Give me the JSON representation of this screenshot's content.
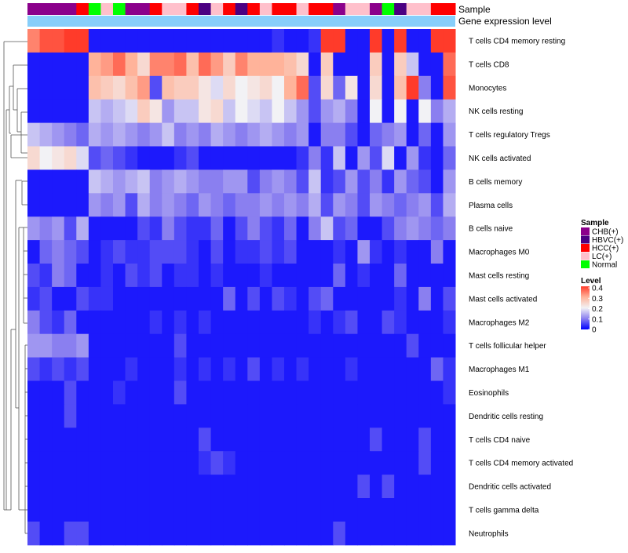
{
  "chart_data": {
    "type": "heatmap",
    "annotation_tracks": [
      "Sample",
      "Gene expression level"
    ],
    "rows": [
      "T cells CD4 memory resting",
      "T cells CD8",
      "Monocytes",
      "NK cells resting",
      "T cells regulatory  Tregs",
      "NK cells activated",
      "B cells memory",
      "Plasma cells",
      "B cells naive",
      "Macrophages M0",
      "Mast cells resting",
      "Mast cells activated",
      "Macrophages M2",
      "T cells follicular helper",
      "Macrophages M1",
      "Eosinophils",
      "Dendritic cells resting",
      "T cells CD4 naive",
      "T cells CD4 memory activated",
      "Dendritic cells activated",
      "T cells gamma delta",
      "Neutrophils"
    ],
    "sample_groups": [
      "CHB",
      "CHB",
      "CHB",
      "CHB",
      "HCC",
      "Normal",
      "LC",
      "Normal",
      "CHB",
      "CHB",
      "HCC",
      "LC",
      "LC",
      "HCC",
      "HBVC",
      "LC",
      "HCC",
      "HBVC",
      "HCC",
      "LC",
      "HCC",
      "HCC",
      "LC",
      "HCC",
      "HCC",
      "CHB",
      "LC",
      "LC",
      "CHB",
      "Normal",
      "HBVC",
      "LC",
      "LC",
      "HCC",
      "HCC"
    ],
    "values": [
      [
        0.34,
        0.38,
        0.38,
        0.42,
        0.42,
        0.02,
        0.02,
        0.02,
        0.02,
        0.02,
        0.02,
        0.02,
        0.02,
        0.02,
        0.02,
        0.02,
        0.02,
        0.02,
        0.02,
        0.02,
        0.04,
        0.02,
        0.02,
        0.04,
        0.42,
        0.42,
        0.02,
        0.02,
        0.44,
        0.02,
        0.4,
        0.02,
        0.02,
        0.42,
        0.42
      ],
      [
        0.02,
        0.02,
        0.02,
        0.02,
        0.02,
        0.3,
        0.32,
        0.36,
        0.3,
        0.24,
        0.34,
        0.34,
        0.36,
        0.28,
        0.36,
        0.32,
        0.26,
        0.34,
        0.3,
        0.3,
        0.3,
        0.28,
        0.24,
        0.02,
        0.26,
        0.02,
        0.02,
        0.02,
        0.26,
        0.02,
        0.26,
        0.16,
        0.02,
        0.02,
        0.36
      ],
      [
        0.02,
        0.02,
        0.02,
        0.02,
        0.02,
        0.28,
        0.26,
        0.24,
        0.28,
        0.32,
        0.06,
        0.28,
        0.26,
        0.26,
        0.22,
        0.18,
        0.24,
        0.2,
        0.22,
        0.24,
        0.2,
        0.3,
        0.36,
        0.06,
        0.24,
        0.08,
        0.22,
        0.02,
        0.24,
        0.02,
        0.28,
        0.44,
        0.1,
        0.02,
        0.38
      ],
      [
        0.02,
        0.02,
        0.02,
        0.02,
        0.02,
        0.16,
        0.14,
        0.16,
        0.18,
        0.26,
        0.22,
        0.12,
        0.16,
        0.16,
        0.22,
        0.24,
        0.16,
        0.2,
        0.18,
        0.16,
        0.2,
        0.16,
        0.12,
        0.06,
        0.12,
        0.14,
        0.1,
        0.02,
        0.2,
        0.02,
        0.2,
        0.02,
        0.2,
        0.1,
        0.14
      ],
      [
        0.16,
        0.14,
        0.12,
        0.1,
        0.08,
        0.14,
        0.12,
        0.14,
        0.12,
        0.1,
        0.12,
        0.16,
        0.1,
        0.12,
        0.1,
        0.14,
        0.12,
        0.1,
        0.12,
        0.14,
        0.12,
        0.1,
        0.12,
        0.02,
        0.1,
        0.1,
        0.06,
        0.02,
        0.08,
        0.1,
        0.12,
        0.02,
        0.08,
        0.02,
        0.12
      ],
      [
        0.24,
        0.2,
        0.22,
        0.24,
        0.18,
        0.06,
        0.08,
        0.06,
        0.04,
        0.02,
        0.02,
        0.02,
        0.04,
        0.06,
        0.02,
        0.02,
        0.02,
        0.02,
        0.02,
        0.02,
        0.02,
        0.02,
        0.04,
        0.1,
        0.04,
        0.16,
        0.02,
        0.12,
        0.06,
        0.18,
        0.02,
        0.12,
        0.04,
        0.02,
        0.08
      ],
      [
        0.02,
        0.02,
        0.02,
        0.02,
        0.02,
        0.16,
        0.14,
        0.12,
        0.14,
        0.16,
        0.1,
        0.12,
        0.14,
        0.12,
        0.1,
        0.1,
        0.12,
        0.12,
        0.06,
        0.1,
        0.12,
        0.1,
        0.06,
        0.16,
        0.04,
        0.06,
        0.12,
        0.06,
        0.1,
        0.04,
        0.12,
        0.08,
        0.06,
        0.02,
        0.12
      ],
      [
        0.02,
        0.02,
        0.02,
        0.02,
        0.02,
        0.12,
        0.1,
        0.12,
        0.06,
        0.14,
        0.1,
        0.12,
        0.1,
        0.08,
        0.12,
        0.1,
        0.08,
        0.1,
        0.1,
        0.12,
        0.1,
        0.12,
        0.1,
        0.14,
        0.06,
        0.12,
        0.1,
        0.06,
        0.12,
        0.1,
        0.08,
        0.1,
        0.12,
        0.06,
        0.14
      ],
      [
        0.12,
        0.1,
        0.12,
        0.06,
        0.14,
        0.02,
        0.02,
        0.02,
        0.02,
        0.06,
        0.04,
        0.1,
        0.06,
        0.04,
        0.04,
        0.08,
        0.02,
        0.06,
        0.1,
        0.06,
        0.04,
        0.08,
        0.02,
        0.1,
        0.16,
        0.06,
        0.08,
        0.02,
        0.02,
        0.06,
        0.1,
        0.12,
        0.1,
        0.08,
        0.1
      ],
      [
        0.02,
        0.08,
        0.1,
        0.08,
        0.06,
        0.02,
        0.04,
        0.06,
        0.04,
        0.04,
        0.06,
        0.06,
        0.06,
        0.04,
        0.02,
        0.06,
        0.02,
        0.04,
        0.04,
        0.06,
        0.04,
        0.06,
        0.02,
        0.02,
        0.02,
        0.04,
        0.02,
        0.12,
        0.04,
        0.02,
        0.04,
        0.02,
        0.02,
        0.1,
        0.02
      ],
      [
        0.06,
        0.04,
        0.1,
        0.08,
        0.02,
        0.02,
        0.04,
        0.02,
        0.06,
        0.04,
        0.06,
        0.02,
        0.04,
        0.04,
        0.02,
        0.04,
        0.02,
        0.02,
        0.02,
        0.04,
        0.02,
        0.02,
        0.02,
        0.02,
        0.02,
        0.08,
        0.02,
        0.04,
        0.02,
        0.02,
        0.08,
        0.02,
        0.02,
        0.02,
        0.02
      ],
      [
        0.04,
        0.06,
        0.02,
        0.02,
        0.06,
        0.04,
        0.04,
        0.02,
        0.02,
        0.02,
        0.02,
        0.02,
        0.02,
        0.02,
        0.02,
        0.02,
        0.08,
        0.02,
        0.06,
        0.02,
        0.06,
        0.04,
        0.02,
        0.06,
        0.08,
        0.02,
        0.02,
        0.02,
        0.02,
        0.02,
        0.04,
        0.02,
        0.1,
        0.02,
        0.06
      ],
      [
        0.1,
        0.06,
        0.04,
        0.08,
        0.02,
        0.02,
        0.02,
        0.02,
        0.02,
        0.02,
        0.04,
        0.02,
        0.04,
        0.02,
        0.04,
        0.02,
        0.02,
        0.02,
        0.02,
        0.02,
        0.02,
        0.02,
        0.02,
        0.04,
        0.02,
        0.04,
        0.06,
        0.02,
        0.02,
        0.06,
        0.04,
        0.02,
        0.02,
        0.02,
        0.04
      ],
      [
        0.12,
        0.12,
        0.1,
        0.1,
        0.12,
        0.02,
        0.02,
        0.02,
        0.02,
        0.02,
        0.02,
        0.02,
        0.06,
        0.02,
        0.02,
        0.02,
        0.02,
        0.02,
        0.02,
        0.02,
        0.02,
        0.02,
        0.02,
        0.02,
        0.02,
        0.02,
        0.02,
        0.02,
        0.02,
        0.02,
        0.02,
        0.06,
        0.02,
        0.02,
        0.02
      ],
      [
        0.06,
        0.04,
        0.06,
        0.04,
        0.06,
        0.02,
        0.02,
        0.02,
        0.04,
        0.02,
        0.02,
        0.02,
        0.04,
        0.02,
        0.04,
        0.02,
        0.04,
        0.02,
        0.06,
        0.02,
        0.04,
        0.02,
        0.04,
        0.02,
        0.02,
        0.02,
        0.04,
        0.02,
        0.02,
        0.02,
        0.02,
        0.02,
        0.02,
        0.08,
        0.04
      ],
      [
        0.02,
        0.02,
        0.02,
        0.06,
        0.02,
        0.02,
        0.02,
        0.04,
        0.02,
        0.02,
        0.02,
        0.02,
        0.06,
        0.02,
        0.02,
        0.02,
        0.02,
        0.02,
        0.02,
        0.02,
        0.02,
        0.02,
        0.02,
        0.02,
        0.02,
        0.02,
        0.02,
        0.02,
        0.02,
        0.02,
        0.02,
        0.02,
        0.02,
        0.02,
        0.04
      ],
      [
        0.02,
        0.02,
        0.02,
        0.06,
        0.02,
        0.02,
        0.02,
        0.02,
        0.02,
        0.02,
        0.02,
        0.02,
        0.02,
        0.02,
        0.02,
        0.02,
        0.02,
        0.02,
        0.02,
        0.02,
        0.02,
        0.02,
        0.02,
        0.02,
        0.02,
        0.02,
        0.02,
        0.02,
        0.02,
        0.02,
        0.02,
        0.02,
        0.02,
        0.02,
        0.02
      ],
      [
        0.02,
        0.02,
        0.02,
        0.02,
        0.02,
        0.02,
        0.02,
        0.02,
        0.02,
        0.02,
        0.02,
        0.02,
        0.02,
        0.02,
        0.06,
        0.02,
        0.02,
        0.02,
        0.02,
        0.02,
        0.02,
        0.02,
        0.02,
        0.02,
        0.02,
        0.02,
        0.02,
        0.02,
        0.06,
        0.02,
        0.02,
        0.02,
        0.06,
        0.02,
        0.02
      ],
      [
        0.02,
        0.02,
        0.02,
        0.02,
        0.02,
        0.02,
        0.02,
        0.02,
        0.02,
        0.02,
        0.02,
        0.02,
        0.02,
        0.02,
        0.04,
        0.06,
        0.04,
        0.02,
        0.02,
        0.02,
        0.02,
        0.02,
        0.02,
        0.02,
        0.02,
        0.02,
        0.02,
        0.02,
        0.02,
        0.02,
        0.02,
        0.02,
        0.06,
        0.02,
        0.02
      ],
      [
        0.02,
        0.02,
        0.02,
        0.02,
        0.02,
        0.02,
        0.02,
        0.02,
        0.02,
        0.02,
        0.02,
        0.02,
        0.02,
        0.02,
        0.02,
        0.02,
        0.02,
        0.02,
        0.02,
        0.02,
        0.02,
        0.02,
        0.02,
        0.02,
        0.02,
        0.02,
        0.02,
        0.06,
        0.02,
        0.06,
        0.02,
        0.02,
        0.02,
        0.02,
        0.02
      ],
      [
        0.02,
        0.02,
        0.02,
        0.02,
        0.02,
        0.02,
        0.02,
        0.02,
        0.02,
        0.02,
        0.02,
        0.02,
        0.02,
        0.02,
        0.02,
        0.02,
        0.02,
        0.02,
        0.02,
        0.02,
        0.02,
        0.02,
        0.02,
        0.02,
        0.02,
        0.02,
        0.02,
        0.02,
        0.02,
        0.02,
        0.02,
        0.02,
        0.02,
        0.02,
        0.02
      ],
      [
        0.06,
        0.02,
        0.02,
        0.06,
        0.06,
        0.02,
        0.02,
        0.02,
        0.02,
        0.02,
        0.02,
        0.02,
        0.02,
        0.02,
        0.02,
        0.02,
        0.02,
        0.02,
        0.02,
        0.02,
        0.02,
        0.02,
        0.02,
        0.02,
        0.02,
        0.06,
        0.02,
        0.02,
        0.02,
        0.02,
        0.02,
        0.02,
        0.02,
        0.02,
        0.02
      ]
    ],
    "color_scale": {
      "domain": [
        0,
        0.1,
        0.2,
        0.3,
        0.4
      ],
      "colors": [
        "#0000ff",
        "#8a7ff0",
        "#f2f2f5",
        "#ffb39a",
        "#ff3b2a"
      ]
    },
    "legend": {
      "sample_title": "Sample",
      "sample_entries": [
        {
          "key": "CHB",
          "label": "CHB(+)",
          "color": "#8b008b"
        },
        {
          "key": "HBVC",
          "label": "HBVC(+)",
          "color": "#4b0082"
        },
        {
          "key": "HCC",
          "label": "HCC(+)",
          "color": "#ff0000"
        },
        {
          "key": "LC",
          "label": "LC(+)",
          "color": "#ffc0cb"
        },
        {
          "key": "Normal",
          "label": "Normal",
          "color": "#00ff00"
        }
      ],
      "level_title": "Level",
      "level_ticks": [
        "0.4",
        "0.3",
        "0.2",
        "0.1",
        "0"
      ]
    },
    "gene_expression_color": "#87cefa"
  }
}
